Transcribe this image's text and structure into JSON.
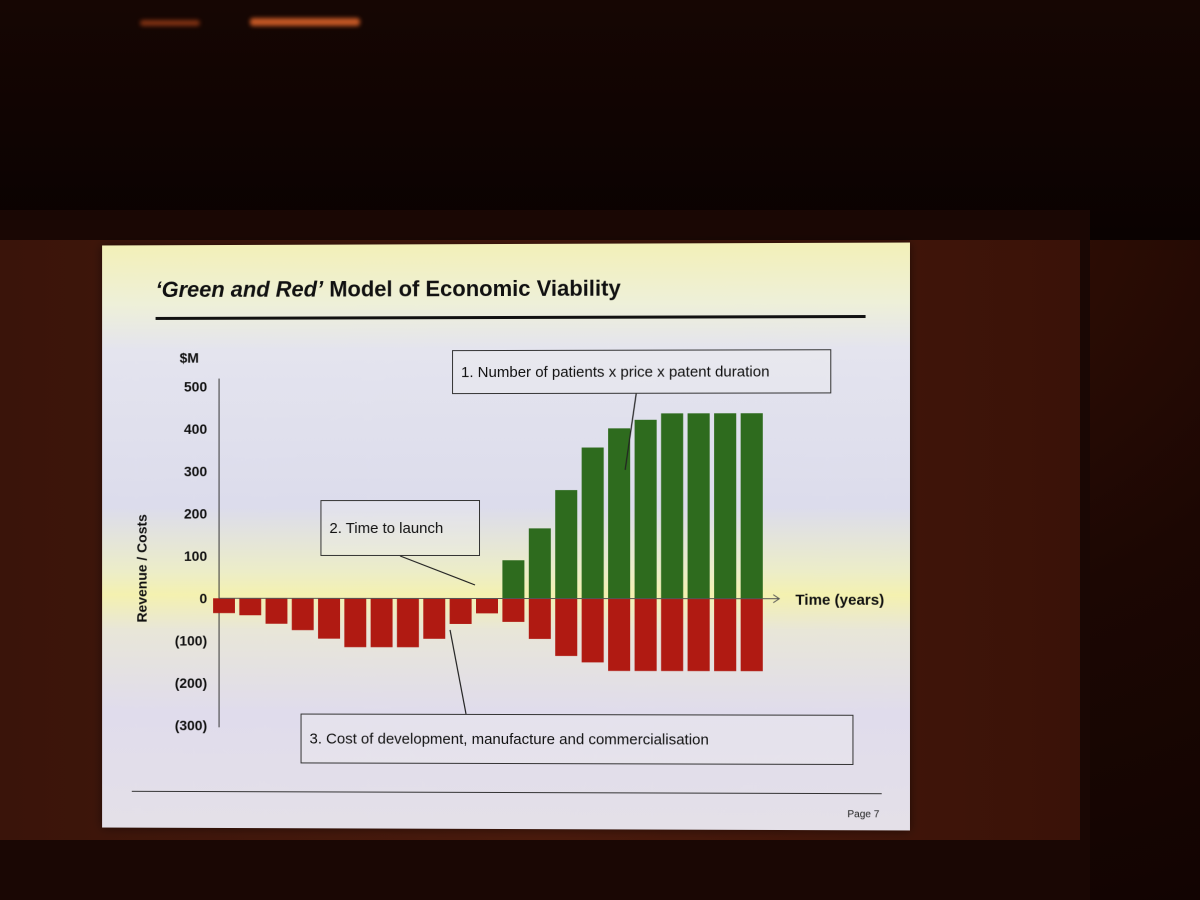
{
  "slide": {
    "title_quoted": "‘Green and Red’",
    "title_rest": " Model of Economic Viability",
    "page": "Page 7"
  },
  "chart_data": {
    "type": "bar",
    "y_unit": "$M",
    "ylabel": "Revenue / Costs",
    "xlabel": "Time (years)",
    "ylim": [
      -300,
      500
    ],
    "y_ticks": [
      500,
      400,
      300,
      200,
      100,
      0,
      -100,
      -200,
      -300
    ],
    "y_tick_labels": [
      "500",
      "400",
      "300",
      "200",
      "100",
      "0",
      "(100)",
      "(200)",
      "(300)"
    ],
    "grid": false,
    "series": [
      {
        "values": [
          0,
          0,
          0,
          0,
          0,
          0,
          0,
          0,
          0,
          0,
          0,
          90,
          165,
          255,
          355,
          400,
          420,
          435,
          435,
          435,
          435
        ],
        "color": "#2e6b1e"
      },
      {
        "values": [
          -35,
          -40,
          -60,
          -75,
          -95,
          -115,
          -115,
          -115,
          -95,
          -60,
          -35,
          -55,
          -95,
          -135,
          -150,
          -170,
          -170,
          -170,
          -170,
          -170,
          -170
        ],
        "color": "#b01a12"
      }
    ],
    "annotations": [
      "1. Number of patients x price x patent duration",
      "2. Time to launch",
      "3. Cost of development, manufacture and commercialisation"
    ]
  }
}
